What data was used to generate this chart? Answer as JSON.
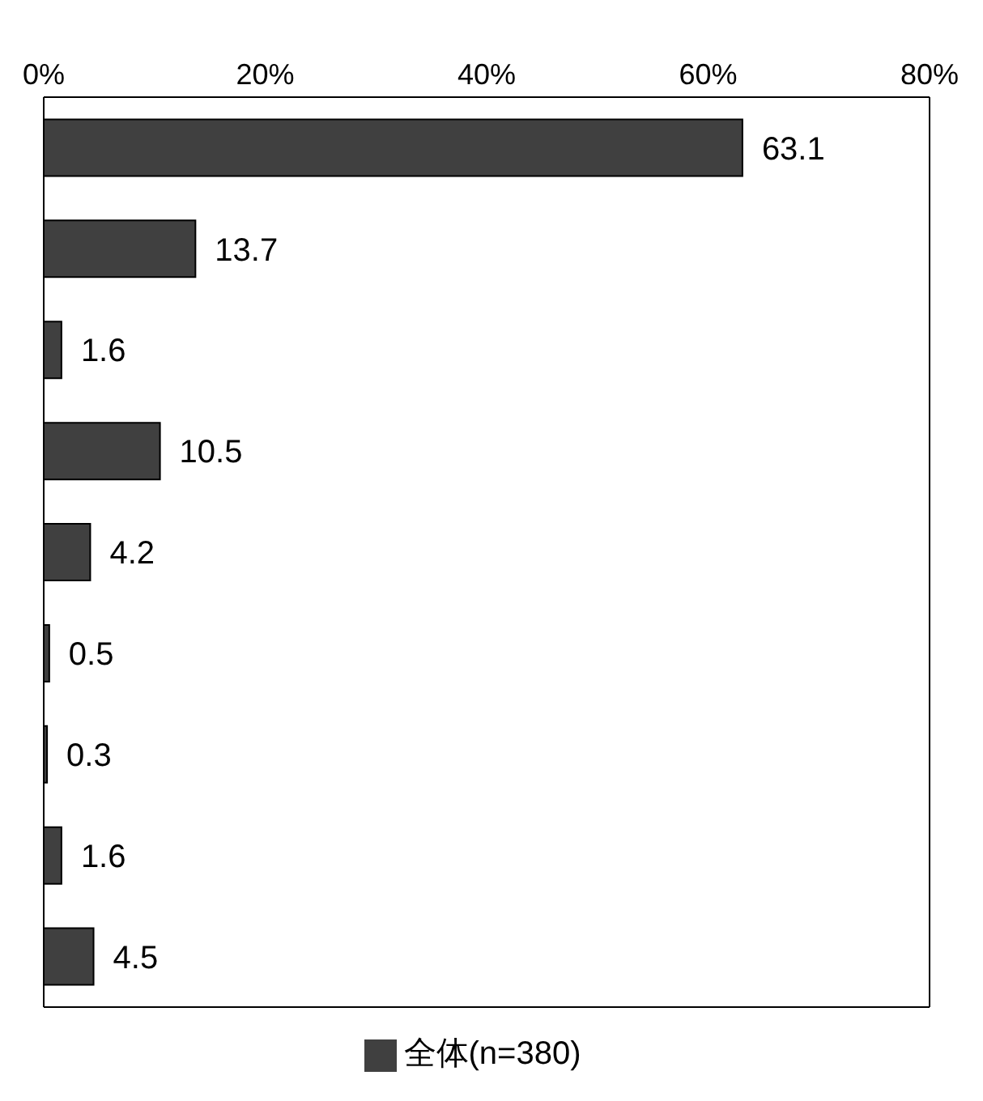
{
  "chart_data": {
    "type": "bar",
    "orientation": "horizontal",
    "categories": [
      null,
      null,
      null,
      null,
      null,
      null,
      null,
      null,
      null
    ],
    "series": [
      {
        "name": "全体(n=380)",
        "color": "#404040",
        "values": [
          63.1,
          13.7,
          1.6,
          10.5,
          4.2,
          0.5,
          0.3,
          1.6,
          4.5
        ]
      }
    ],
    "xlim": [
      0,
      80
    ],
    "xticks": [
      {
        "value": 0,
        "label": "0%"
      },
      {
        "value": 20,
        "label": "20%"
      },
      {
        "value": 40,
        "label": "40%"
      },
      {
        "value": 60,
        "label": "60%"
      },
      {
        "value": 80,
        "label": "80%"
      }
    ],
    "data_labels": true,
    "legend": "bottom",
    "grid": false,
    "tick_labels": "x"
  }
}
